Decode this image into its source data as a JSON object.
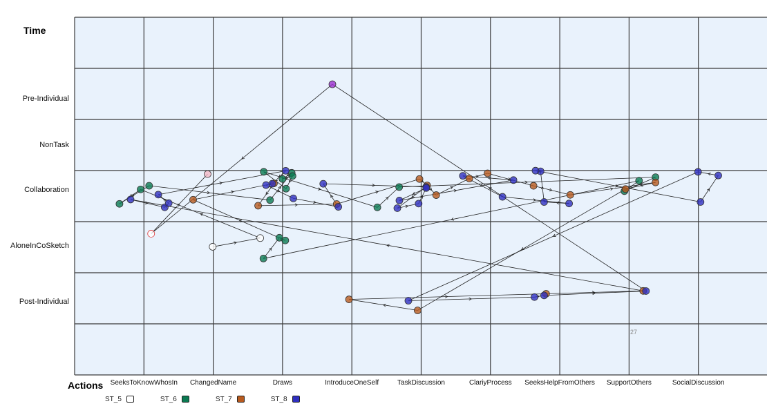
{
  "chart_data": {
    "type": "scatter",
    "title": "",
    "y_axis_title": "Time",
    "x_axis_title": "Actions",
    "y_categories": [
      "Pre-Individual",
      "NonTask",
      "Collaboration",
      "AloneInCoSketch",
      "Post-Individual"
    ],
    "x_categories": [
      "SeeksToKnowWhosIn",
      "ChangedName",
      "Draws",
      "IntroduceOneSelf",
      "TaskDiscussion",
      "ClariyProcess",
      "SeeksHelpFromOthers",
      "SupportOthers",
      "SocialDiscussion"
    ],
    "annotation": "27",
    "grid": true,
    "legend_position": "bottom-left",
    "series": [
      {
        "name": "ST_5",
        "color": "#ffffff",
        "points": [
          {
            "x": "ChangedName",
            "y": "AloneInCoSketch"
          },
          {
            "x": "Draws",
            "y": "AloneInCoSketch"
          }
        ]
      },
      {
        "name": "ST_6",
        "color": "#0b7a52",
        "points": [
          {
            "x": "SeeksToKnowWhosIn",
            "y": "Collaboration"
          },
          {
            "x": "SeeksToKnowWhosIn",
            "y": "Collaboration"
          },
          {
            "x": "SeeksToKnowWhosIn",
            "y": "Collaboration"
          },
          {
            "x": "Draws",
            "y": "Collaboration"
          },
          {
            "x": "Draws",
            "y": "Collaboration"
          },
          {
            "x": "Draws",
            "y": "Collaboration"
          },
          {
            "x": "Draws",
            "y": "Collaboration"
          },
          {
            "x": "Draws",
            "y": "Collaboration"
          },
          {
            "x": "Draws",
            "y": "Collaboration"
          },
          {
            "x": "IntroduceOneSelf",
            "y": "Collaboration"
          },
          {
            "x": "TaskDiscussion",
            "y": "Collaboration"
          },
          {
            "x": "SupportOthers",
            "y": "Collaboration"
          },
          {
            "x": "SupportOthers",
            "y": "Collaboration"
          },
          {
            "x": "SupportOthers",
            "y": "Collaboration"
          },
          {
            "x": "Draws",
            "y": "AloneInCoSketch"
          },
          {
            "x": "Draws",
            "y": "AloneInCoSketch"
          },
          {
            "x": "Draws",
            "y": "AloneInCoSketch"
          }
        ]
      },
      {
        "name": "ST_7",
        "color": "#b85a1e",
        "points": [
          {
            "x": "ChangedName",
            "y": "Collaboration"
          },
          {
            "x": "Draws",
            "y": "Collaboration"
          },
          {
            "x": "Draws",
            "y": "Collaboration"
          },
          {
            "x": "IntroduceOneSelf",
            "y": "Collaboration"
          },
          {
            "x": "TaskDiscussion",
            "y": "Collaboration"
          },
          {
            "x": "TaskDiscussion",
            "y": "Collaboration"
          },
          {
            "x": "TaskDiscussion",
            "y": "Collaboration"
          },
          {
            "x": "ClariyProcess",
            "y": "Collaboration"
          },
          {
            "x": "ClariyProcess",
            "y": "Collaboration"
          },
          {
            "x": "SeeksHelpFromOthers",
            "y": "Collaboration"
          },
          {
            "x": "SeeksHelpFromOthers",
            "y": "Collaboration"
          },
          {
            "x": "SupportOthers",
            "y": "Collaboration"
          },
          {
            "x": "SupportOthers",
            "y": "Collaboration"
          },
          {
            "x": "TaskDiscussion",
            "y": "Post-Individual"
          },
          {
            "x": "IntroduceOneSelf",
            "y": "Post-Individual"
          },
          {
            "x": "SeeksHelpFromOthers",
            "y": "Post-Individual"
          },
          {
            "x": "SupportOthers",
            "y": "Post-Individual"
          }
        ]
      },
      {
        "name": "ST_8",
        "color": "#2f2fc0",
        "points": [
          {
            "x": "SeeksToKnowWhosIn",
            "y": "Collaboration"
          },
          {
            "x": "SeeksToKnowWhosIn",
            "y": "Collaboration"
          },
          {
            "x": "SeeksToKnowWhosIn",
            "y": "Collaboration"
          },
          {
            "x": "SeeksToKnowWhosIn",
            "y": "Collaboration"
          },
          {
            "x": "Draws",
            "y": "Collaboration"
          },
          {
            "x": "Draws",
            "y": "Collaboration"
          },
          {
            "x": "Draws",
            "y": "Collaboration"
          },
          {
            "x": "Draws",
            "y": "Collaboration"
          },
          {
            "x": "IntroduceOneSelf",
            "y": "Collaboration"
          },
          {
            "x": "IntroduceOneSelf",
            "y": "Collaboration"
          },
          {
            "x": "TaskDiscussion",
            "y": "Collaboration"
          },
          {
            "x": "TaskDiscussion",
            "y": "Collaboration"
          },
          {
            "x": "TaskDiscussion",
            "y": "Collaboration"
          },
          {
            "x": "TaskDiscussion",
            "y": "Collaboration"
          },
          {
            "x": "TaskDiscussion",
            "y": "Collaboration"
          },
          {
            "x": "ClariyProcess",
            "y": "Collaboration"
          },
          {
            "x": "ClariyProcess",
            "y": "Collaboration"
          },
          {
            "x": "ClariyProcess",
            "y": "Collaboration"
          },
          {
            "x": "SeeksHelpFromOthers",
            "y": "Collaboration"
          },
          {
            "x": "SeeksHelpFromOthers",
            "y": "Collaboration"
          },
          {
            "x": "SeeksHelpFromOthers",
            "y": "Collaboration"
          },
          {
            "x": "SeeksHelpFromOthers",
            "y": "Collaboration"
          },
          {
            "x": "SocialDiscussion",
            "y": "Collaboration"
          },
          {
            "x": "SocialDiscussion",
            "y": "Collaboration"
          },
          {
            "x": "SocialDiscussion",
            "y": "Collaboration"
          },
          {
            "x": "TaskDiscussion",
            "y": "Post-Individual"
          },
          {
            "x": "SeeksHelpFromOthers",
            "y": "Post-Individual"
          },
          {
            "x": "SeeksHelpFromOthers",
            "y": "Post-Individual"
          },
          {
            "x": "SupportOthers",
            "y": "Post-Individual"
          }
        ]
      }
    ],
    "extra_points": [
      {
        "x": "IntroduceOneSelf",
        "y": "Pre-Individual",
        "color": "#9c2fd0"
      },
      {
        "x": "SeeksToKnowWhosIn",
        "y": "AloneInCoSketch",
        "color": "#ffffff",
        "edge": "#e04040"
      },
      {
        "x": "ChangedName",
        "y": "Collaboration",
        "color": "#f2b8c6"
      }
    ]
  }
}
